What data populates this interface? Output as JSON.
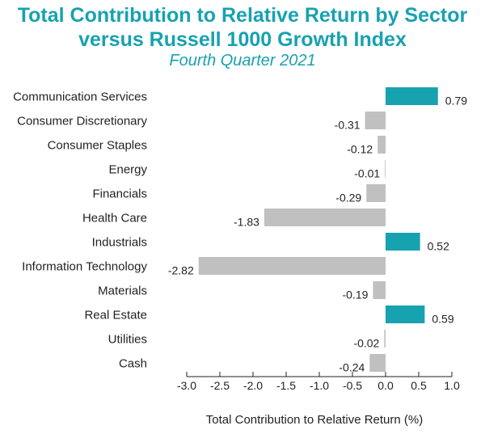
{
  "chart_data": {
    "type": "bar",
    "orientation": "horizontal",
    "title": "Total Contribution to Relative Return by Sector versus Russell 1000 Growth Index",
    "title_lines": [
      "Total Contribution to Relative Return by Sector",
      "versus Russell 1000 Growth Index"
    ],
    "subtitle": "Fourth Quarter 2021",
    "xlabel": "Total Contribution to Relative Return (%)",
    "ylabel": "",
    "categories": [
      "Communication Services",
      "Consumer Discretionary",
      "Consumer Staples",
      "Energy",
      "Financials",
      "Health Care",
      "Industrials",
      "Information Technology",
      "Materials",
      "Real Estate",
      "Utilities",
      "Cash"
    ],
    "values": [
      0.79,
      -0.31,
      -0.12,
      -0.01,
      -0.29,
      -1.83,
      0.52,
      -2.82,
      -0.19,
      0.59,
      -0.02,
      -0.24
    ],
    "value_labels": [
      "0.79",
      "-0.31",
      "-0.12",
      "-0.01",
      "-0.29",
      "-1.83",
      "0.52",
      "-2.82",
      "-0.19",
      "0.59",
      "-0.02",
      "-0.24"
    ],
    "xlim": [
      -3.0,
      1.0
    ],
    "xticks": [
      -3.0,
      -2.5,
      -2.0,
      -1.5,
      -1.0,
      -0.5,
      0.0,
      0.5,
      1.0
    ],
    "xtick_labels": [
      "-3.0",
      "-2.5",
      "-2.0",
      "-1.5",
      "-1.0",
      "-0.5",
      "0.0",
      "0.5",
      "1.0"
    ],
    "grid": false,
    "legend": "none",
    "colors": {
      "positive": "#17a2b0",
      "negative": "#c0c0c0",
      "title": "#17a2b0",
      "text": "#231f20",
      "axis": "#231f20"
    }
  }
}
